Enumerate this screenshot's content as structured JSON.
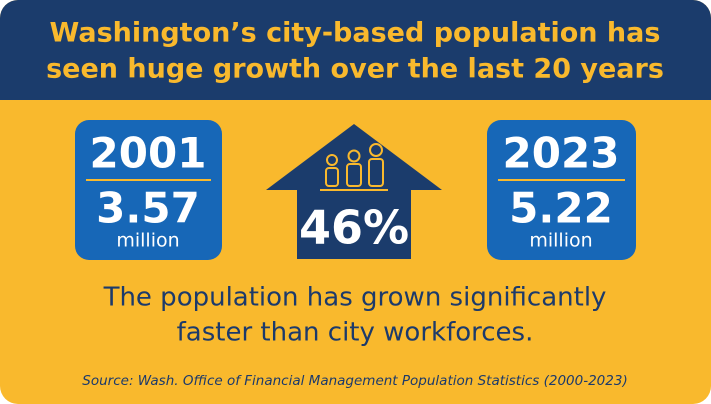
{
  "header": {
    "title": [
      "Washington’s city-based population has",
      "seen huge growth over the last 20 years"
    ]
  },
  "left": {
    "year": "2001",
    "value": "3.57",
    "unit": "million"
  },
  "center": {
    "percent": "46%"
  },
  "right": {
    "year": "2023",
    "value": "5.22",
    "unit": "million"
  },
  "body": [
    "The population has grown significantly",
    "faster than city workforces."
  ],
  "source": "Source: Wash. Office of Financial Management Population Statistics (2000-2023)"
}
